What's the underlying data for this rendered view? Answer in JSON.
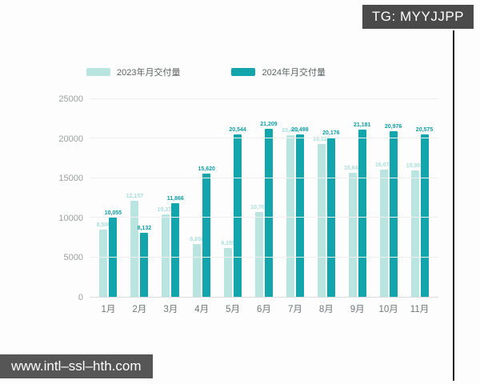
{
  "watermarks": {
    "top_right": "TG: MYYJJPP",
    "bottom_left": "www.intl–ssl–hth.com"
  },
  "chart_data": {
    "type": "bar",
    "title": "",
    "xlabel": "",
    "ylabel": "",
    "categories": [
      "1月",
      "2月",
      "3月",
      "4月",
      "5月",
      "6月",
      "7月",
      "8月",
      "9月",
      "10月",
      "11月"
    ],
    "series": [
      {
        "name": "2023年月交付量",
        "color": "#b9e4e0",
        "label_color": "#a9ded9",
        "values": [
          8506,
          12157,
          10378,
          6658,
          6155,
          10707,
          20462,
          19329,
          15641,
          16074,
          15959
        ]
      },
      {
        "name": "2024年月交付量",
        "color": "#12a5ab",
        "label_color": "#0f9ca3",
        "values": [
          10055,
          8132,
          11866,
          15620,
          20544,
          21209,
          20498,
          20176,
          21181,
          20976,
          20575
        ]
      }
    ],
    "yticks": [
      0,
      5000,
      10000,
      15000,
      20000,
      25000
    ],
    "ylim": [
      0,
      25000
    ],
    "grid": true,
    "legend_position": "top"
  }
}
